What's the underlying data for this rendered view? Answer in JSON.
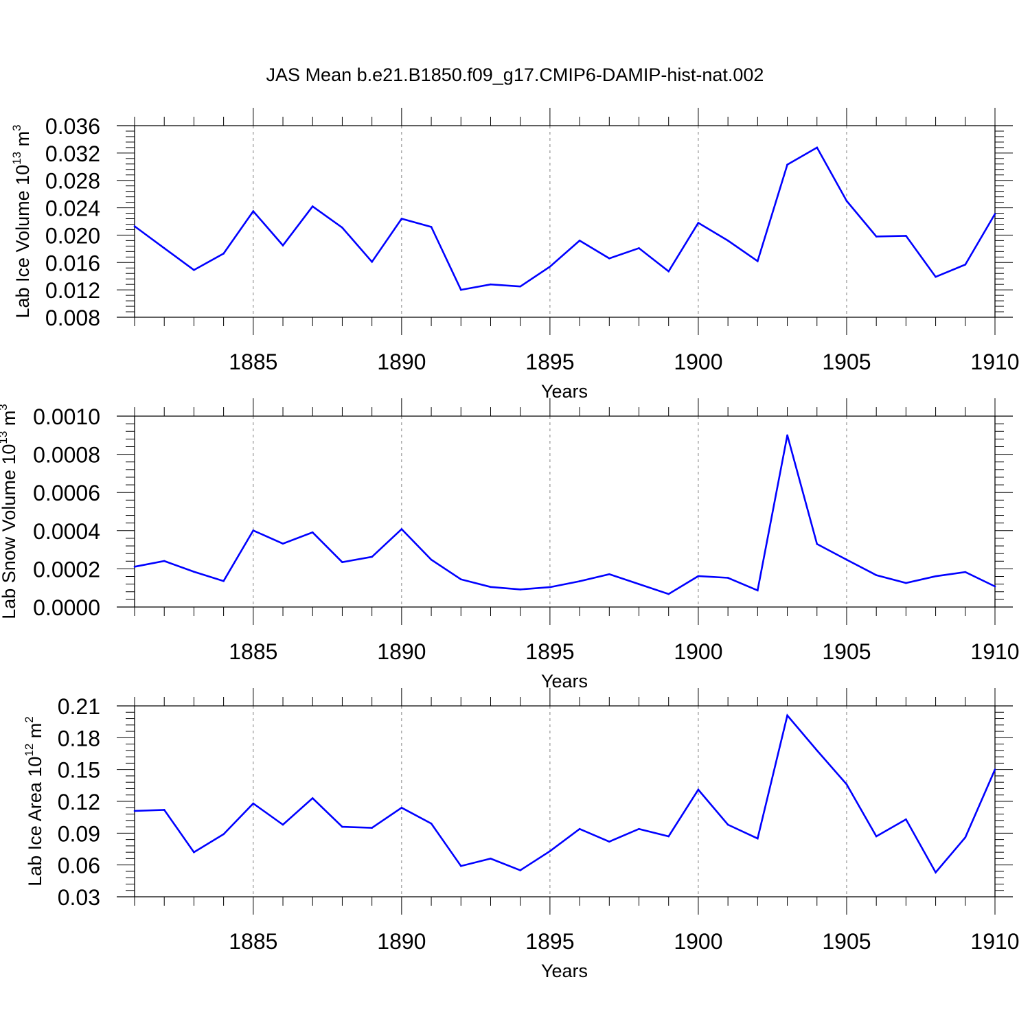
{
  "figure": {
    "title": "JAS Mean b.e21.B1850.f09_g17.CMIP6-DAMIP-hist-nat.002"
  },
  "style": {
    "line_color": "#0000ff",
    "axis_color": "#000000",
    "grid_color": "#808080"
  },
  "chart_data": [
    {
      "type": "line",
      "title": "JAS Mean b.e21.B1850.f09_g17.CMIP6-DAMIP-hist-nat.002",
      "xlabel": "Years",
      "ylabel_base": "Lab Ice Volume 10",
      "ylabel_exp": "13",
      "ylabel_unit": " m",
      "ylabel_unit_exp": "3",
      "xlim": [
        1881,
        1910
      ],
      "ylim": [
        0.008,
        0.036
      ],
      "yticks": [
        0.008,
        0.012,
        0.016,
        0.02,
        0.024,
        0.028,
        0.032,
        0.036
      ],
      "ytick_labels": [
        "0.008",
        "0.012",
        "0.016",
        "0.020",
        "0.024",
        "0.028",
        "0.032",
        "0.036"
      ],
      "xticks": [
        1885,
        1890,
        1895,
        1900,
        1905,
        1910
      ],
      "xtick_labels": [
        "1885",
        "1890",
        "1895",
        "1900",
        "1905",
        "1910"
      ],
      "grid": "vertical dashed at major x ticks",
      "series": [
        {
          "name": "Lab Ice Volume",
          "x": [
            1881,
            1882,
            1883,
            1884,
            1885,
            1886,
            1887,
            1888,
            1889,
            1890,
            1891,
            1892,
            1893,
            1894,
            1895,
            1896,
            1897,
            1898,
            1899,
            1900,
            1901,
            1902,
            1903,
            1904,
            1905,
            1906,
            1907,
            1908,
            1909,
            1910
          ],
          "values": [
            0.0213,
            0.0181,
            0.0149,
            0.0173,
            0.0235,
            0.0185,
            0.0242,
            0.0211,
            0.0161,
            0.0224,
            0.0212,
            0.012,
            0.0128,
            0.0125,
            0.0154,
            0.0192,
            0.0166,
            0.0181,
            0.0147,
            0.0218,
            0.0192,
            0.0162,
            0.0303,
            0.0328,
            0.025,
            0.0198,
            0.0199,
            0.0139,
            0.0157,
            0.0231
          ]
        }
      ]
    },
    {
      "type": "line",
      "xlabel": "Years",
      "ylabel_base": "Lab Snow Volume 10",
      "ylabel_exp": "13",
      "ylabel_unit": " m",
      "ylabel_unit_exp": "3",
      "xlim": [
        1881,
        1910
      ],
      "ylim": [
        0.0,
        0.001
      ],
      "yticks": [
        0.0,
        0.0002,
        0.0004,
        0.0006,
        0.0008,
        0.001
      ],
      "ytick_labels": [
        "0.0000",
        "0.0002",
        "0.0004",
        "0.0006",
        "0.0008",
        "0.0010"
      ],
      "xticks": [
        1885,
        1890,
        1895,
        1900,
        1905,
        1910
      ],
      "xtick_labels": [
        "1885",
        "1890",
        "1895",
        "1900",
        "1905",
        "1910"
      ],
      "grid": "vertical dashed at major x ticks",
      "series": [
        {
          "name": "Lab Snow Volume",
          "x": [
            1881,
            1882,
            1883,
            1884,
            1885,
            1886,
            1887,
            1888,
            1889,
            1890,
            1891,
            1892,
            1893,
            1894,
            1895,
            1896,
            1897,
            1898,
            1899,
            1900,
            1901,
            1902,
            1903,
            1904,
            1905,
            1906,
            1907,
            1908,
            1909,
            1910
          ],
          "values": [
            0.000211,
            0.000241,
            0.000185,
            0.000136,
            0.000401,
            0.000332,
            0.000391,
            0.000235,
            0.000263,
            0.000408,
            0.000248,
            0.000145,
            0.000105,
            9.2e-05,
            0.000104,
            0.000135,
            0.000172,
            0.00012,
            6.8e-05,
            0.000162,
            0.000153,
            8.7e-05,
            0.0009,
            0.00033,
            0.000248,
            0.000167,
            0.000126,
            0.000161,
            0.000183,
            0.000108
          ]
        }
      ]
    },
    {
      "type": "line",
      "xlabel": "Years",
      "ylabel_base": "Lab Ice Area 10",
      "ylabel_exp": "12",
      "ylabel_unit": " m",
      "ylabel_unit_exp": "2",
      "xlim": [
        1881,
        1910
      ],
      "ylim": [
        0.03,
        0.21
      ],
      "yticks": [
        0.03,
        0.06,
        0.09,
        0.12,
        0.15,
        0.18,
        0.21
      ],
      "ytick_labels": [
        "0.03",
        "0.06",
        "0.09",
        "0.12",
        "0.15",
        "0.18",
        "0.21"
      ],
      "xticks": [
        1885,
        1890,
        1895,
        1900,
        1905,
        1910
      ],
      "xtick_labels": [
        "1885",
        "1890",
        "1895",
        "1900",
        "1905",
        "1910"
      ],
      "grid": "vertical dashed at major x ticks",
      "series": [
        {
          "name": "Lab Ice Area",
          "x": [
            1881,
            1882,
            1883,
            1884,
            1885,
            1886,
            1887,
            1888,
            1889,
            1890,
            1891,
            1892,
            1893,
            1894,
            1895,
            1896,
            1897,
            1898,
            1899,
            1900,
            1901,
            1902,
            1903,
            1904,
            1905,
            1906,
            1907,
            1908,
            1909,
            1910
          ],
          "values": [
            0.111,
            0.112,
            0.072,
            0.089,
            0.118,
            0.098,
            0.123,
            0.096,
            0.095,
            0.114,
            0.099,
            0.059,
            0.066,
            0.055,
            0.073,
            0.094,
            0.082,
            0.094,
            0.087,
            0.131,
            0.098,
            0.085,
            0.201,
            0.168,
            0.136,
            0.087,
            0.103,
            0.053,
            0.086,
            0.15
          ]
        }
      ]
    }
  ]
}
